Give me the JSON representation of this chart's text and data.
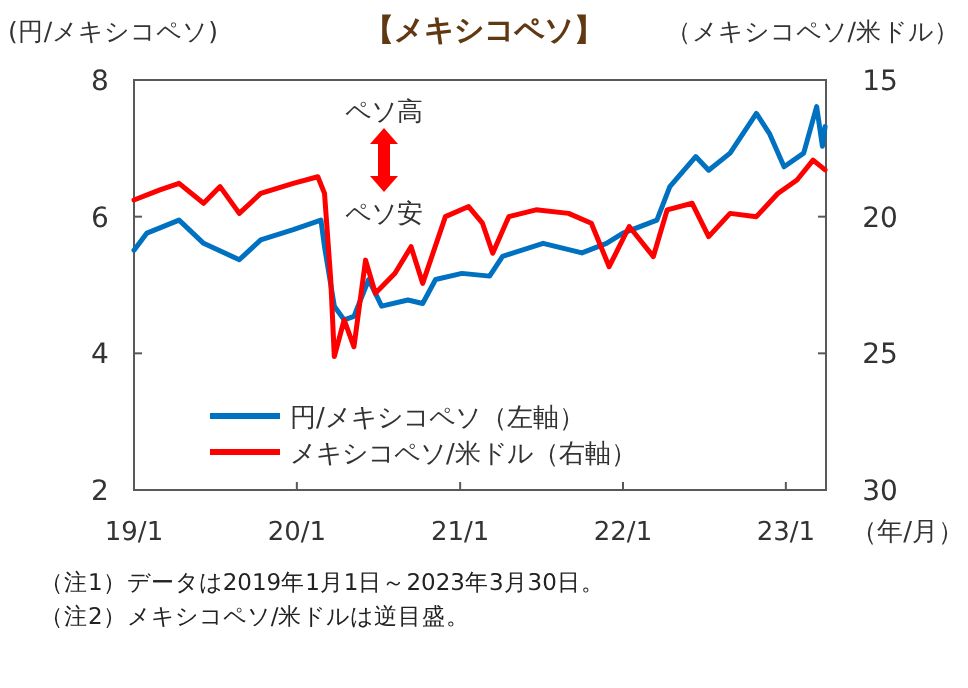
{
  "chart_data": {
    "type": "line",
    "title": "【メキシコペソ】",
    "ylabel": "(円/メキシコペソ)",
    "y2label": "（メキシコペソ/米ドル）",
    "xlabel": "（年/月）",
    "annotations": [
      {
        "text": "ペソ高"
      },
      {
        "text": "ペソ安"
      },
      "（注1）データは2019年1月1日～2023年3月30日。",
      "（注2）メキシコペソ/米ドルは逆目盛。"
    ],
    "series": [
      {
        "name": "円/メキシコペソ（左軸）",
        "color": "#0070c0",
        "x": [
          "2019-01-01",
          "2019-01-30",
          "2019-04-12",
          "2019-06-06",
          "2019-08-25",
          "2019-10-12",
          "2019-12-24",
          "2020-02-24",
          "2020-03-03",
          "2020-03-25",
          "2020-04-16",
          "2020-05-08",
          "2020-06-10",
          "2020-07-09",
          "2020-09-06",
          "2020-10-09",
          "2020-11-07",
          "2021-01-05",
          "2021-03-08",
          "2021-04-06",
          "2021-07-06",
          "2021-10-01",
          "2021-11-25",
          "2022-01-01",
          "2022-03-18",
          "2022-04-16",
          "2022-06-13",
          "2022-07-12",
          "2022-08-29",
          "2022-10-27",
          "2022-11-25",
          "2022-12-28",
          "2023-02-10",
          "2023-03-11",
          "2023-03-24",
          "2023-03-30"
        ],
        "values": [
          5.51,
          5.76,
          5.95,
          5.61,
          5.37,
          5.66,
          5.81,
          5.95,
          5.56,
          4.69,
          4.49,
          4.54,
          5.08,
          4.69,
          4.78,
          4.73,
          5.08,
          5.17,
          5.13,
          5.42,
          5.61,
          5.47,
          5.61,
          5.76,
          5.95,
          6.44,
          6.88,
          6.68,
          6.93,
          7.51,
          7.22,
          6.73,
          6.93,
          7.61,
          7.03,
          7.32
        ]
      },
      {
        "name": "メキシコペソ/米ドル（右軸）",
        "color": "#ff0000",
        "axis": "y2",
        "x": [
          "2019-01-01",
          "2019-02-28",
          "2019-04-12",
          "2019-06-06",
          "2019-07-13",
          "2019-08-25",
          "2019-10-12",
          "2019-12-24",
          "2020-02-17",
          "2020-03-03",
          "2020-03-17",
          "2020-03-25",
          "2020-04-16",
          "2020-05-08",
          "2020-06-03",
          "2020-06-25",
          "2020-08-08",
          "2020-09-13",
          "2020-10-09",
          "2020-11-29",
          "2021-01-20",
          "2021-02-20",
          "2021-03-15",
          "2021-04-20",
          "2021-06-20",
          "2021-09-01",
          "2021-10-22",
          "2021-12-01",
          "2022-01-15",
          "2022-03-10",
          "2022-04-10",
          "2022-06-05",
          "2022-07-12",
          "2022-08-29",
          "2022-10-27",
          "2022-12-14",
          "2023-01-26",
          "2023-03-03",
          "2023-03-30"
        ],
        "values": [
          19.39,
          19.02,
          18.78,
          19.51,
          18.9,
          19.88,
          19.15,
          18.78,
          18.54,
          19.15,
          22.32,
          25.12,
          23.78,
          24.76,
          21.59,
          22.8,
          22.07,
          21.1,
          22.44,
          20.0,
          19.63,
          20.24,
          21.34,
          20.0,
          19.75,
          19.88,
          20.24,
          21.83,
          20.36,
          21.46,
          19.75,
          19.51,
          20.73,
          19.88,
          20.0,
          19.15,
          18.66,
          17.93,
          18.29
        ]
      }
    ],
    "xlim": [
      "2019-01-01",
      "2023-04-01"
    ],
    "xticks": [
      {
        "value": "2019-01-01",
        "label": "19/1"
      },
      {
        "value": "2020-01-01",
        "label": "20/1"
      },
      {
        "value": "2021-01-01",
        "label": "21/1"
      },
      {
        "value": "2022-01-01",
        "label": "22/1"
      },
      {
        "value": "2023-01-01",
        "label": "23/1"
      }
    ],
    "ylim": [
      2,
      8
    ],
    "yticks": [
      2,
      4,
      6,
      8
    ],
    "y2lim": [
      30,
      15
    ],
    "y2ticks": [
      15,
      20,
      25,
      30
    ],
    "legend": "bottom",
    "line_style": "solid",
    "marker": "none"
  }
}
